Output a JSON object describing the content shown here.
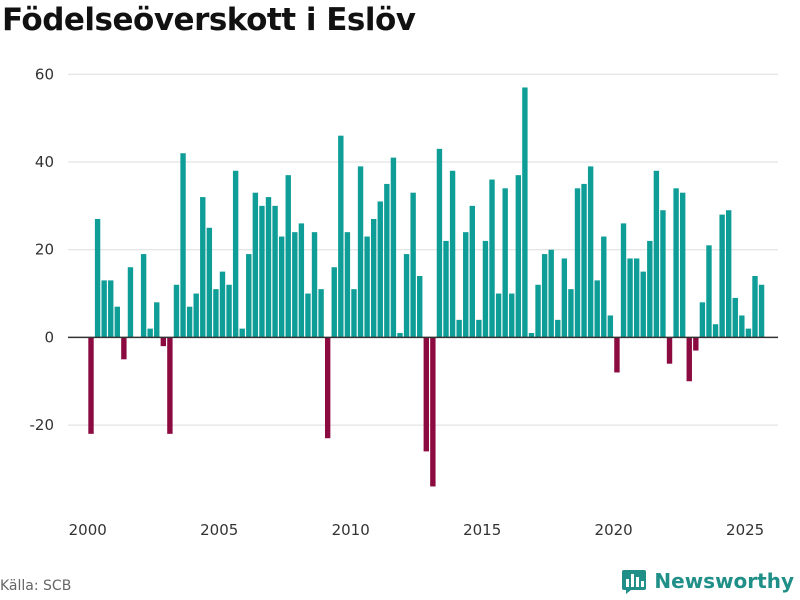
{
  "header": {
    "title": "Födelseöverskott i Eslöv"
  },
  "footer": {
    "source": "Källa: SCB",
    "brand": "Newsworthy"
  },
  "colors": {
    "positive": "#0f9e97",
    "negative": "#8b0a40",
    "brand": "#1f8f87",
    "grid": "#dddddd",
    "zero_line": "#333333"
  },
  "icons": {
    "brand_logo": "bar-chart-logo-icon"
  },
  "chart_data": {
    "type": "bar",
    "title": "Födelseöverskott i Eslöv",
    "xlabel": "",
    "ylabel": "",
    "ylim": [
      -38,
      66
    ],
    "xlim": [
      1999.25,
      2026.25
    ],
    "yticks": [
      -20,
      0,
      20,
      40,
      60
    ],
    "xticks": [
      2000,
      2005,
      2010,
      2015,
      2020,
      2025
    ],
    "grid": true,
    "legend": "none",
    "x_unit": "quarter",
    "start_period": "2000Q1",
    "values": [
      -22,
      27,
      13,
      13,
      7,
      -5,
      16,
      0,
      19,
      2,
      8,
      -2,
      -22,
      12,
      42,
      7,
      10,
      32,
      25,
      11,
      15,
      12,
      38,
      2,
      19,
      33,
      30,
      32,
      30,
      23,
      37,
      24,
      26,
      10,
      24,
      11,
      -23,
      16,
      46,
      24,
      11,
      39,
      23,
      27,
      31,
      35,
      41,
      1,
      19,
      33,
      14,
      -26,
      -34,
      43,
      22,
      38,
      4,
      24,
      30,
      4,
      22,
      36,
      10,
      34,
      10,
      37,
      57,
      1,
      12,
      19,
      20,
      4,
      18,
      11,
      34,
      35,
      39,
      13,
      23,
      5,
      -8,
      26,
      18,
      18,
      15,
      22,
      38,
      29,
      -6,
      34,
      33,
      -10,
      -3,
      8,
      21,
      3,
      28,
      29,
      9,
      5,
      2,
      14,
      12
    ]
  }
}
